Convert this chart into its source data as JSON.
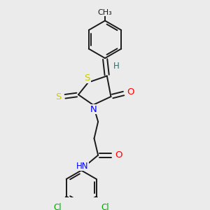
{
  "background_color": "#ebebeb",
  "bond_color": "#1a1a1a",
  "atom_colors": {
    "S": "#cccc00",
    "N": "#0000ff",
    "O": "#ff0000",
    "Cl": "#00aa00",
    "H": "#008080",
    "C": "#1a1a1a",
    "CH3": "#1a1a1a"
  },
  "font_size": 8.5,
  "linewidth": 1.4,
  "figsize": [
    3.0,
    3.0
  ],
  "dpi": 100,
  "xlim": [
    0.0,
    1.0
  ],
  "ylim": [
    0.0,
    1.0
  ]
}
